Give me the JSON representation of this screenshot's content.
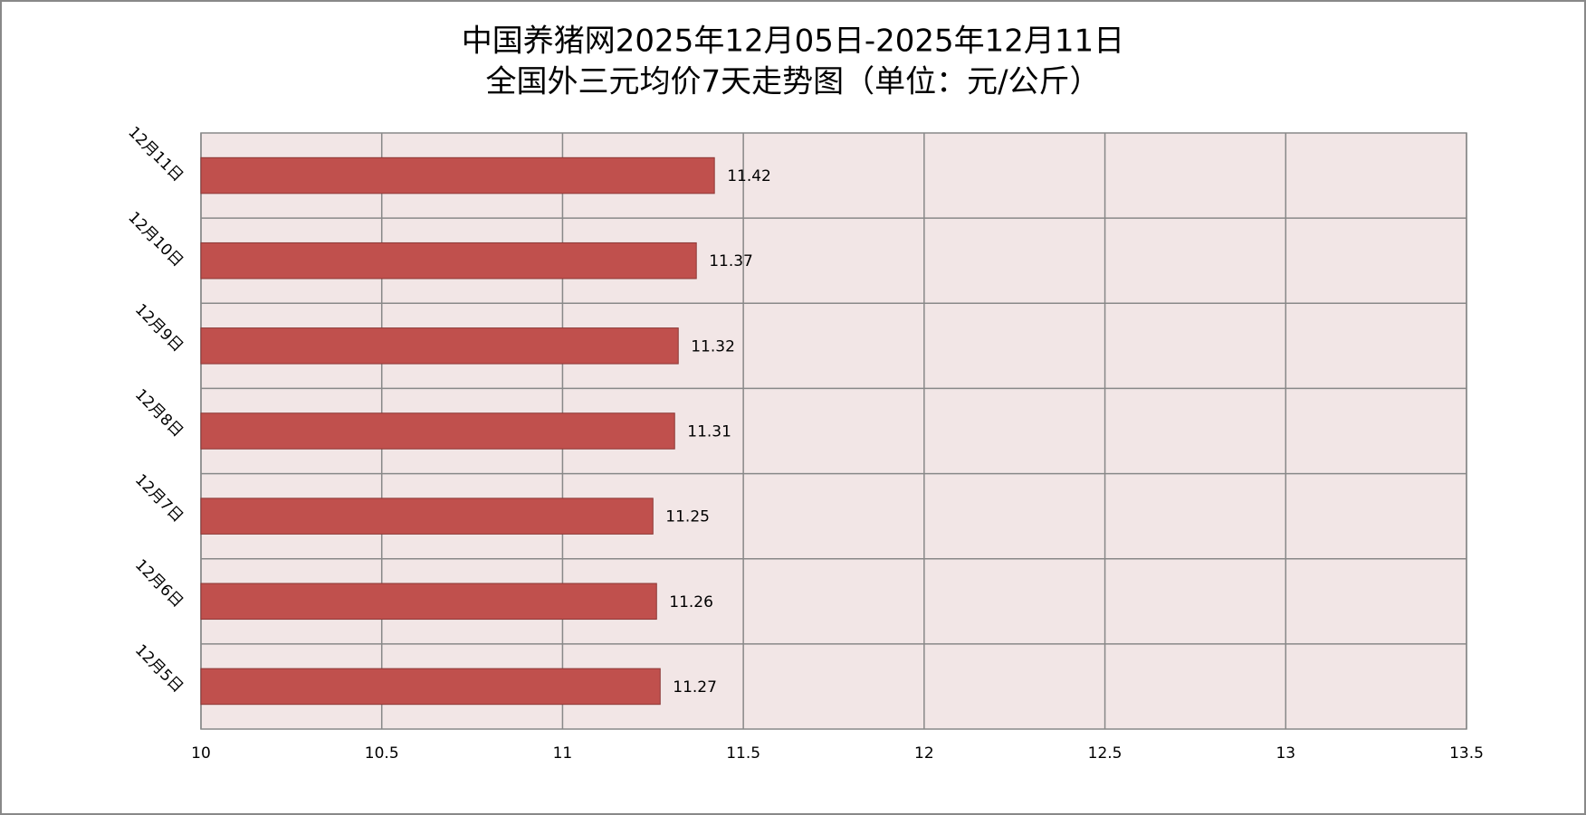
{
  "chart_data": {
    "type": "bar",
    "orientation": "horizontal",
    "title": "中国养猪网2025年12月05日-2025年12月11日",
    "subtitle": "全国外三元均价7天走势图（单位：元/公斤）",
    "categories": [
      "12月5日",
      "12月6日",
      "12月7日",
      "12月8日",
      "12月9日",
      "12月10日",
      "12月11日"
    ],
    "values": [
      11.27,
      11.26,
      11.25,
      11.31,
      11.32,
      11.37,
      11.42
    ],
    "color": "#c0504d",
    "xlim": [
      10,
      13.5
    ],
    "xticks": [
      10,
      10.5,
      11,
      11.5,
      12,
      12.5,
      13,
      13.5
    ],
    "grid": true
  }
}
